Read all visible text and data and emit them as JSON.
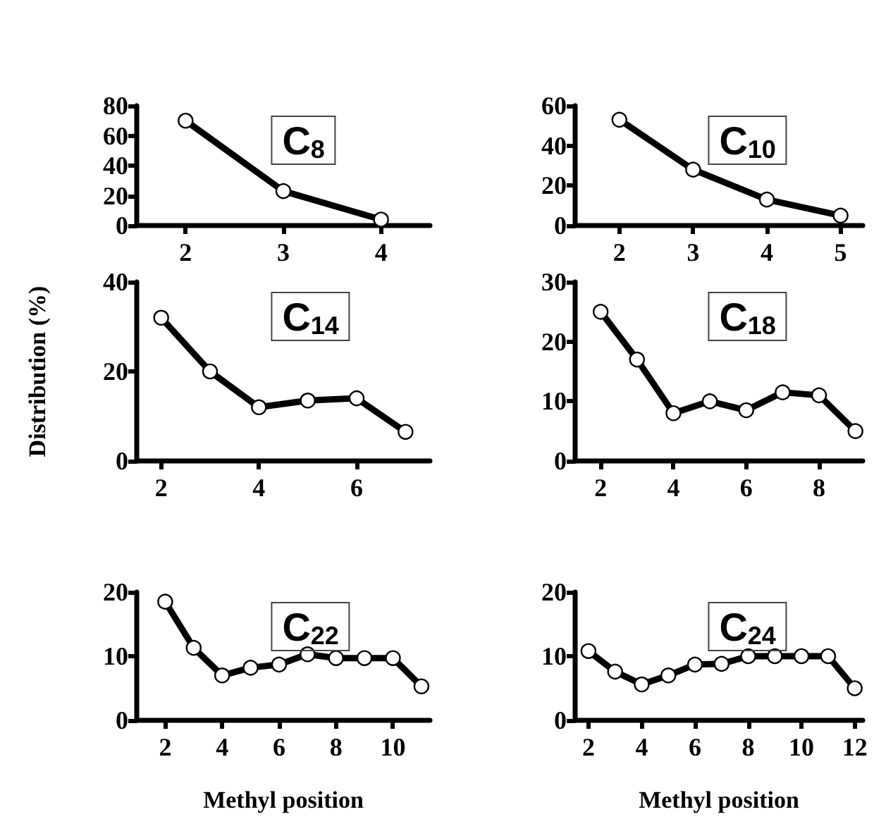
{
  "chart_data": [
    {
      "type": "line",
      "title": "C$_{8}$",
      "x": [
        2,
        3,
        4
      ],
      "series": [
        {
          "color": "#000000",
          "values": [
            70,
            23,
            4
          ]
        }
      ],
      "xlim": [
        1.5,
        4.5
      ],
      "xticks": [
        2,
        3,
        4
      ],
      "ylim": [
        0,
        80
      ],
      "yticks": [
        0,
        20,
        40,
        60,
        80
      ],
      "grid": false,
      "marker": "circle",
      "line_style": "solid"
    },
    {
      "type": "line",
      "title": "C$_{10}$",
      "x": [
        2,
        3,
        4,
        5
      ],
      "series": [
        {
          "color": "#000000",
          "values": [
            53,
            28,
            13,
            5
          ]
        }
      ],
      "xlim": [
        1.4,
        5.3
      ],
      "xticks": [
        2,
        3,
        4,
        5
      ],
      "ylim": [
        0,
        60
      ],
      "yticks": [
        0,
        20,
        40,
        60
      ],
      "grid": false,
      "marker": "circle",
      "line_style": "solid"
    },
    {
      "type": "line",
      "title": "C$_{14}$",
      "ylabel": "Distribution (%)",
      "x": [
        2,
        3,
        4,
        5,
        6,
        7
      ],
      "series": [
        {
          "color": "#000000",
          "values": [
            32,
            20,
            12,
            13.5,
            14,
            6.5
          ]
        }
      ],
      "xlim": [
        1.5,
        7.5
      ],
      "xticks": [
        2,
        4,
        6
      ],
      "ylim": [
        0,
        40
      ],
      "yticks": [
        0,
        20,
        40
      ],
      "grid": false,
      "marker": "circle",
      "line_style": "solid"
    },
    {
      "type": "line",
      "title": "C$_{18}$",
      "x": [
        2,
        3,
        4,
        5,
        6,
        7,
        8,
        9
      ],
      "series": [
        {
          "color": "#000000",
          "values": [
            25,
            17,
            8,
            10,
            8.5,
            11.5,
            11,
            5
          ]
        }
      ],
      "xlim": [
        1.3,
        9.2
      ],
      "xticks": [
        2,
        4,
        6,
        8
      ],
      "ylim": [
        0,
        30
      ],
      "yticks": [
        0,
        10,
        20,
        30
      ],
      "grid": false,
      "marker": "circle",
      "line_style": "solid"
    },
    {
      "type": "line",
      "title": "C$_{22}$",
      "xlabel": "Methyl position",
      "x": [
        2,
        3,
        4,
        5,
        6,
        7,
        8,
        9,
        10,
        11
      ],
      "series": [
        {
          "color": "#000000",
          "values": [
            18.5,
            11.3,
            7,
            8.2,
            8.7,
            10.3,
            9.7,
            9.7,
            9.7,
            5.3
          ]
        }
      ],
      "xlim": [
        1,
        11.3
      ],
      "xticks": [
        2,
        4,
        6,
        8,
        10
      ],
      "ylim": [
        0,
        20
      ],
      "yticks": [
        0,
        10,
        20
      ],
      "grid": false,
      "marker": "circle",
      "line_style": "solid"
    },
    {
      "type": "line",
      "title": "C$_{24}$",
      "xlabel": "Methyl position",
      "x": [
        2,
        3,
        4,
        5,
        6,
        7,
        8,
        9,
        10,
        11,
        12
      ],
      "series": [
        {
          "color": "#000000",
          "values": [
            10.8,
            7.6,
            5.6,
            7,
            8.7,
            8.8,
            10,
            10,
            10,
            10,
            5
          ]
        }
      ],
      "xlim": [
        1.5,
        12.3
      ],
      "xticks": [
        2,
        4,
        6,
        8,
        10,
        12
      ],
      "ylim": [
        0,
        20
      ],
      "yticks": [
        0,
        10,
        20
      ],
      "grid": false,
      "marker": "circle",
      "line_style": "solid"
    }
  ]
}
